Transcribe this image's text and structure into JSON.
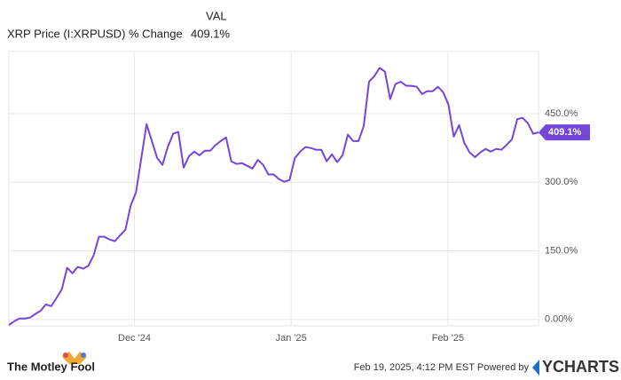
{
  "chart_data": {
    "type": "line",
    "header_column": "VAL",
    "series": [
      {
        "name": "XRP Price (I:XRPUSD) % Change",
        "color": "#7446d9",
        "values": [
          -12,
          -4,
          2,
          2,
          4,
          12,
          19,
          33,
          29,
          47,
          66,
          113,
          101,
          115,
          111,
          117,
          140,
          181,
          181,
          175,
          171,
          184,
          196,
          249,
          278,
          353,
          427,
          390,
          353,
          338,
          377,
          406,
          410,
          332,
          357,
          367,
          359,
          369,
          369,
          381,
          390,
          398,
          346,
          340,
          342,
          336,
          330,
          349,
          338,
          317,
          317,
          307,
          301,
          305,
          353,
          367,
          377,
          375,
          371,
          371,
          346,
          361,
          344,
          359,
          404,
          390,
          390,
          423,
          520,
          532,
          550,
          542,
          482,
          515,
          520,
          511,
          511,
          509,
          493,
          499,
          499,
          509,
          497,
          470,
          400,
          425,
          386,
          365,
          355,
          365,
          373,
          367,
          373,
          371,
          382,
          394,
          438,
          441,
          429,
          406,
          409.1
        ]
      }
    ],
    "latest_label": "409.1%",
    "xlim": [
      0,
      100
    ],
    "xticks": [
      {
        "value": 23.7,
        "label": "Dec '24"
      },
      {
        "value": 53.3,
        "label": "Jan '25"
      },
      {
        "value": 82.9,
        "label": "Feb '25"
      }
    ],
    "ylim": [
      -14,
      586
    ],
    "yticks": [
      {
        "value": 0,
        "label": "0.00%"
      },
      {
        "value": 150,
        "label": "150.0%"
      },
      {
        "value": 300,
        "label": "300.0%"
      },
      {
        "value": 450,
        "label": "450.0%"
      }
    ],
    "grid": true,
    "footer": {
      "brand": "The Motley Fool",
      "timestamp": "Feb 19, 2025, 4:12 PM EST  Powered by",
      "provider": "YCHARTS"
    }
  }
}
